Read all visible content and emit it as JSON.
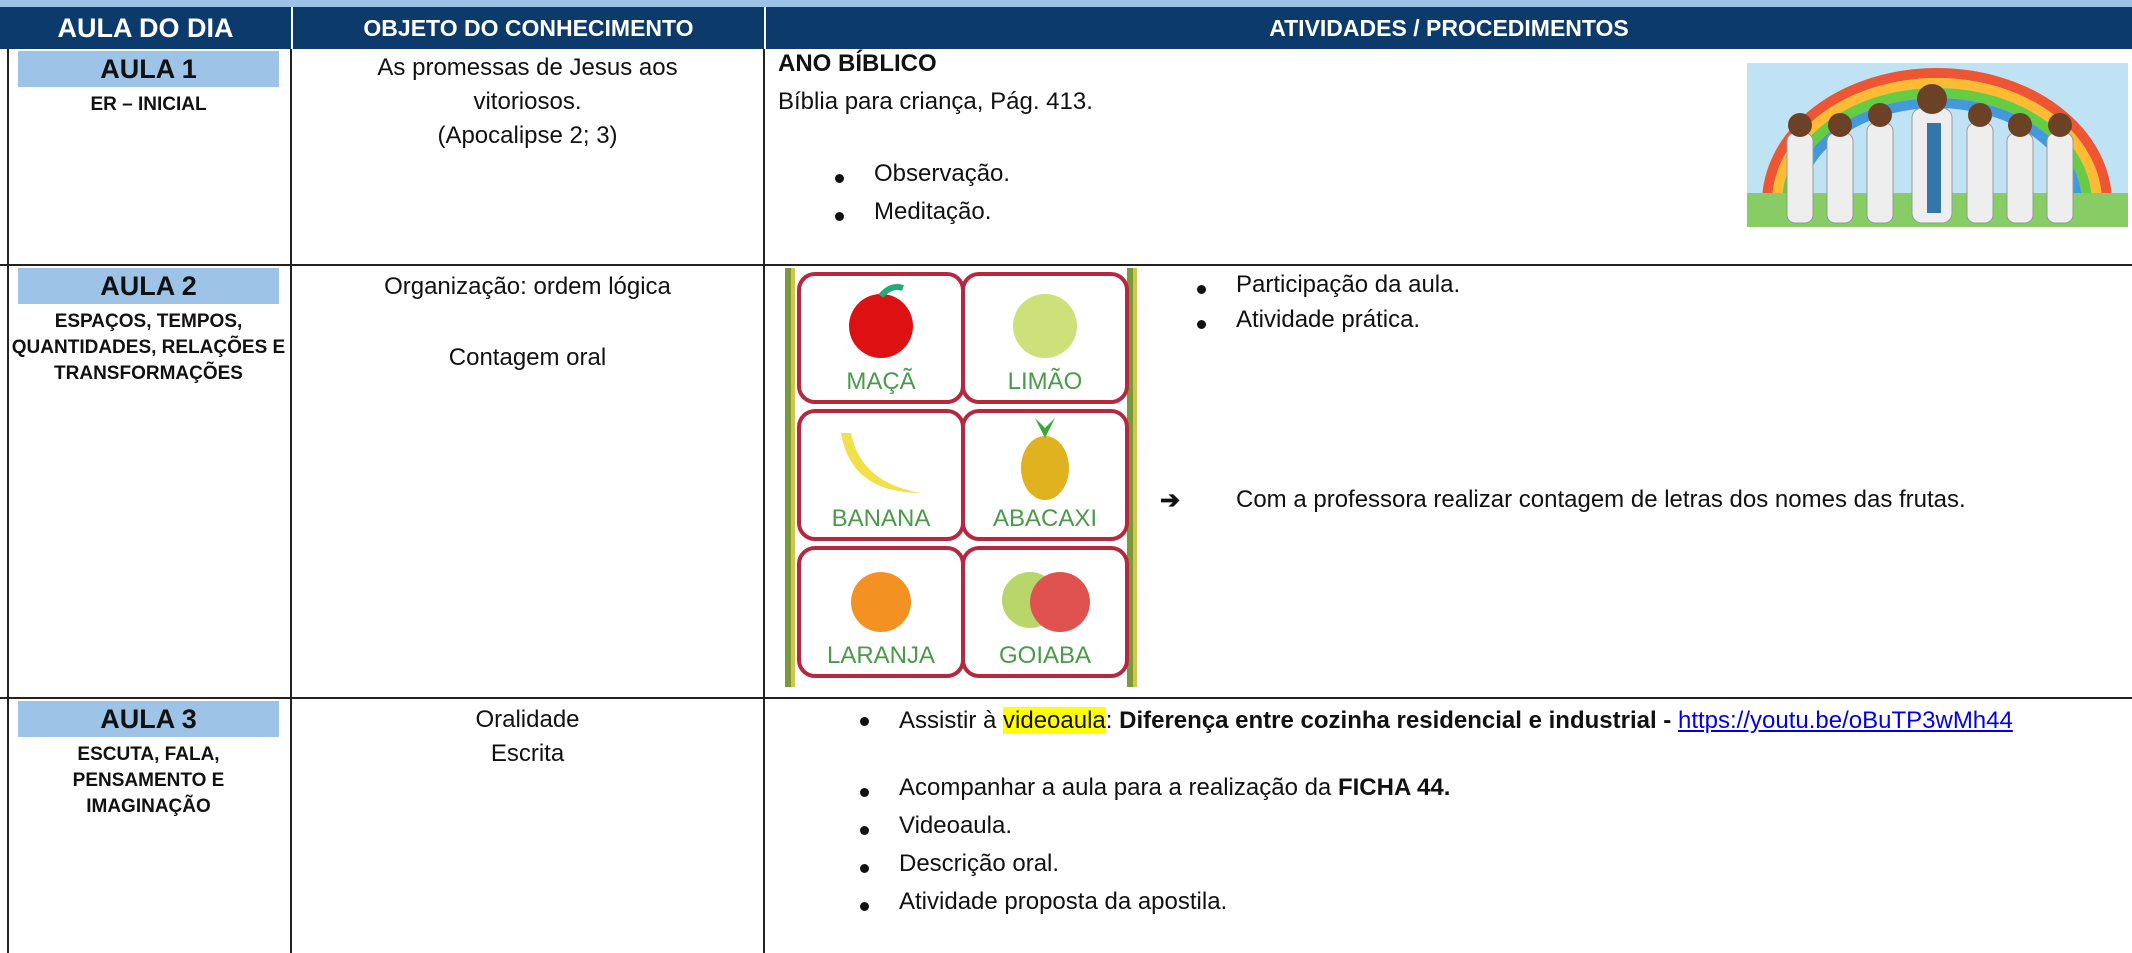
{
  "header": {
    "col1": "AULA DO DIA",
    "col2": "OBJETO DO CONHECIMENTO",
    "col3": "ATIVIDADES / PROCEDIMENTOS"
  },
  "rows": [
    {
      "aula": "AULA 1",
      "area": "ER – INICIAL",
      "objeto": [
        "As promessas de Jesus aos",
        "vitoriosos.",
        "(Apocalipse 2; 3)"
      ],
      "titulo": "ANO BÍBLICO",
      "fonte": "Bíblia para criança, Pág. 413.",
      "itens": [
        "Observação.",
        "Meditação."
      ]
    },
    {
      "aula": "AULA 2",
      "area": "ESPAÇOS, TEMPOS, QUANTIDADES, RELAÇÕES E TRANSFORMAÇÕES",
      "objeto": [
        "Organização: ordem lógica",
        "Contagem oral"
      ],
      "frutas": [
        "MAÇÃ",
        "LIMÃO",
        "BANANA",
        "ABACAXI",
        "LARANJA",
        "GOIABA"
      ],
      "itens": [
        "Participação da aula.",
        "Atividade prática."
      ],
      "seta": "Com a professora realizar contagem de letras dos nomes das frutas."
    },
    {
      "aula": "AULA 3",
      "area": "ESCUTA, FALA, PENSAMENTO E IMAGINAÇÃO",
      "objeto": [
        "Oralidade",
        "Escrita"
      ],
      "video": {
        "pre": "Assistir à",
        "destaque": "videoaula",
        "sep": ":",
        "titulo": "Diferença entre cozinha residencial e industrial -",
        "link": "https://youtu.be/oBuTP3wMh44"
      },
      "ficha": {
        "pre": "Acompanhar a aula para a realização da",
        "bold": "FICHA 44."
      },
      "itens": [
        "Videoaula.",
        "Descrição oral.",
        "Atividade proposta da apostila."
      ]
    }
  ]
}
